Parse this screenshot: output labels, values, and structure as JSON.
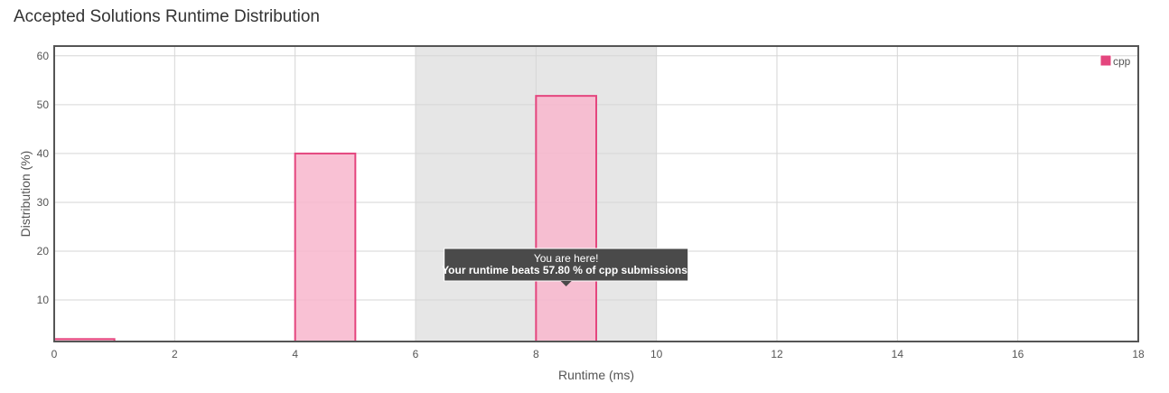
{
  "page": {
    "title": "Accepted Solutions Runtime Distribution"
  },
  "chart_data": {
    "type": "bar",
    "xlabel": "Runtime (ms)",
    "ylabel": "Distribution (%)",
    "xlim": [
      0,
      18
    ],
    "ylim": [
      1.5,
      62
    ],
    "x_ticks": [
      0,
      2,
      4,
      6,
      8,
      10,
      12,
      14,
      16,
      18
    ],
    "y_ticks": [
      10,
      20,
      30,
      40,
      50,
      60
    ],
    "grid": true,
    "legend_position": "top-right",
    "series": [
      {
        "name": "cpp",
        "color": "#e4467e",
        "fill": "#f8b6cc",
        "bars": [
          {
            "x0": 0,
            "x1": 1,
            "value": 2.0
          },
          {
            "x0": 4,
            "x1": 5,
            "value": 40.0
          },
          {
            "x0": 8,
            "x1": 9,
            "value": 51.8
          }
        ]
      }
    ],
    "highlight_range": [
      6,
      10
    ],
    "annotation": {
      "line1": "You are here!",
      "line2": "Your runtime beats 57.80 % of cpp submissions.",
      "anchor_x": 8.5
    }
  }
}
